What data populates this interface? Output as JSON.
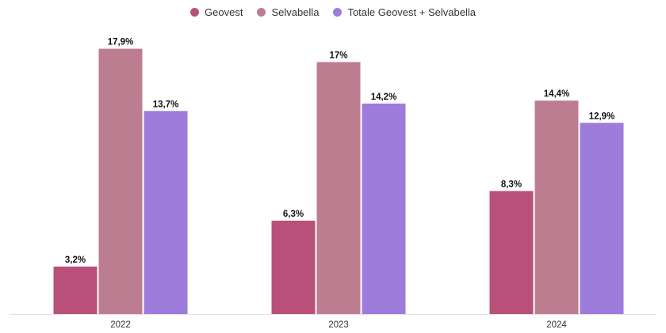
{
  "chart_data": {
    "type": "bar",
    "categories": [
      "2022",
      "2023",
      "2024"
    ],
    "series": [
      {
        "name": "Geovest",
        "values": [
          3.2,
          6.3,
          8.3
        ],
        "labels": [
          "3,2%",
          "6,3%",
          "8,3%"
        ],
        "color": "#b9507a"
      },
      {
        "name": "Selvabella",
        "values": [
          17.9,
          17,
          14.4
        ],
        "labels": [
          "17,9%",
          "17%",
          "14,4%"
        ],
        "color": "#bd7d90"
      },
      {
        "name": "Totale Geovest + Selvabella",
        "values": [
          13.7,
          14.2,
          12.9
        ],
        "labels": [
          "13,7%",
          "14,2%",
          "12,9%"
        ],
        "color": "#9d7cdb"
      }
    ],
    "ylim": [
      0,
      19
    ],
    "grid": false,
    "legend_position": "top-center"
  }
}
